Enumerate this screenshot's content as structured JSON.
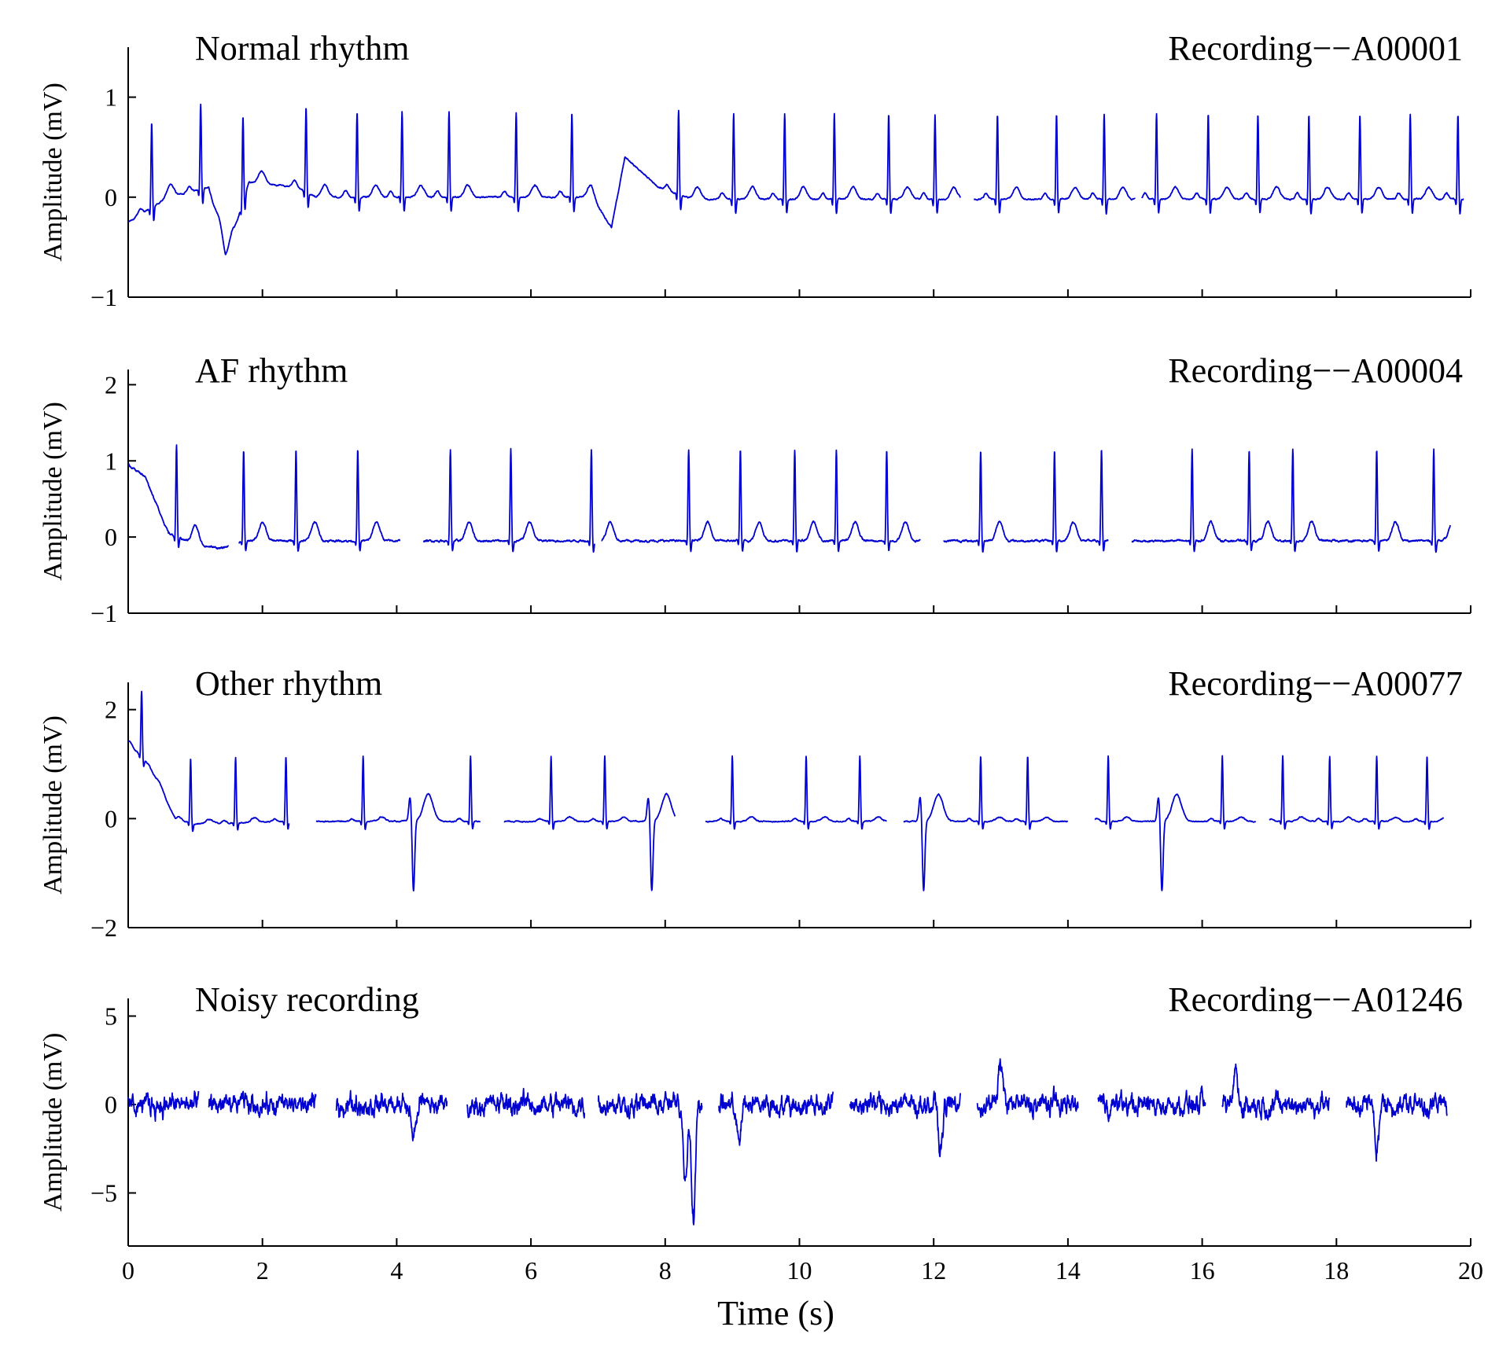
{
  "chart_data": [
    {
      "type": "line",
      "title": "Normal rhythm",
      "recording": "Recording−−A00001",
      "ylabel": "Amplitude (mV)",
      "ylim": [
        -1,
        1.5
      ],
      "yticks": [
        -1,
        0,
        1
      ],
      "xlim": [
        0,
        20
      ],
      "line_color": "#0000d0",
      "baseline": 0.0,
      "segments": [
        [
          0,
          12.4
        ],
        [
          12.6,
          15.0
        ],
        [
          15.1,
          19.9
        ]
      ],
      "beats": [
        0.35,
        1.08,
        1.71,
        2.65,
        3.41,
        4.08,
        4.78,
        5.78,
        6.61,
        8.2,
        9.02,
        9.78,
        10.52,
        11.33,
        12.02,
        12.95,
        13.83,
        14.54,
        15.32,
        16.09,
        16.83,
        17.59,
        18.35,
        19.1,
        19.81
      ],
      "r_amplitude": 0.85,
      "p_amplitude": 0.06,
      "t_amplitude": 0.12,
      "noise": 0.02,
      "drift": [
        [
          0,
          -0.25
        ],
        [
          0.6,
          0.0
        ],
        [
          1.2,
          0.1
        ],
        [
          1.45,
          -0.6
        ],
        [
          1.8,
          0.15
        ],
        [
          2.5,
          0.1
        ],
        [
          2.8,
          0.0
        ],
        [
          6.9,
          0.0
        ],
        [
          7.2,
          -0.3
        ],
        [
          7.4,
          0.4
        ],
        [
          7.9,
          0.1
        ],
        [
          8.4,
          -0.02
        ],
        [
          19.9,
          -0.02
        ]
      ]
    },
    {
      "type": "line",
      "title": "AF rhythm",
      "recording": "Recording−−A00004",
      "ylabel": "Amplitude (mV)",
      "ylim": [
        -1,
        2.2
      ],
      "yticks": [
        -1,
        0,
        1,
        2
      ],
      "xlim": [
        0,
        20
      ],
      "line_color": "#0000d0",
      "baseline": -0.05,
      "segments": [
        [
          0,
          1.5
        ],
        [
          1.65,
          4.05
        ],
        [
          4.4,
          6.95
        ],
        [
          7.05,
          11.8
        ],
        [
          12.15,
          14.6
        ],
        [
          14.95,
          19.7
        ]
      ],
      "beats": [
        0.72,
        1.72,
        2.5,
        3.42,
        4.8,
        5.7,
        6.9,
        8.35,
        9.12,
        9.93,
        10.55,
        11.3,
        12.7,
        13.8,
        14.5,
        15.85,
        16.7,
        17.35,
        18.6,
        19.45
      ],
      "r_amplitude": 1.2,
      "p_amplitude": 0.0,
      "t_amplitude": 0.25,
      "noise": 0.04,
      "drift": [
        [
          0,
          0.95
        ],
        [
          0.25,
          0.8
        ],
        [
          0.6,
          0.05
        ],
        [
          1.0,
          -0.1
        ],
        [
          1.4,
          -0.15
        ],
        [
          1.7,
          -0.05
        ],
        [
          19.7,
          -0.05
        ]
      ]
    },
    {
      "type": "line",
      "title": "Other rhythm",
      "recording": "Recording−−A00077",
      "ylabel": "Amplitude (mV)",
      "ylim": [
        -2,
        2.5
      ],
      "yticks": [
        -2,
        0,
        2
      ],
      "xlim": [
        0,
        20
      ],
      "line_color": "#0000d0",
      "baseline": -0.05,
      "segments": [
        [
          0,
          2.4
        ],
        [
          2.8,
          5.25
        ],
        [
          5.6,
          8.15
        ],
        [
          8.6,
          11.3
        ],
        [
          11.55,
          14.0
        ],
        [
          14.4,
          16.8
        ],
        [
          17.0,
          19.6
        ]
      ],
      "beats": [
        0.2,
        0.93,
        1.6,
        2.35,
        3.5,
        5.1,
        6.3,
        7.1,
        9.0,
        10.1,
        10.9,
        12.7,
        13.4,
        14.6,
        16.3,
        17.2,
        17.9,
        18.6,
        19.35
      ],
      "ectopic": [
        4.25,
        7.8,
        11.85,
        15.4
      ],
      "r_amplitude": 1.2,
      "ectopic_depth": -1.3,
      "p_amplitude": 0.05,
      "t_amplitude": 0.08,
      "noise": 0.03,
      "drift": [
        [
          0,
          1.4
        ],
        [
          0.3,
          1.0
        ],
        [
          0.7,
          0.0
        ],
        [
          1.0,
          -0.1
        ],
        [
          2.4,
          -0.05
        ],
        [
          19.6,
          -0.05
        ]
      ]
    },
    {
      "type": "line",
      "title": "Noisy recording",
      "recording": "Recording−−A01246",
      "ylabel": "Amplitude (mV)",
      "ylim": [
        -8,
        6
      ],
      "yticks": [
        -5,
        0,
        5
      ],
      "xlim": [
        0,
        20
      ],
      "line_color": "#0000d0",
      "baseline": 0.0,
      "segments": [
        [
          0,
          1.05
        ],
        [
          1.2,
          2.8
        ],
        [
          3.1,
          4.75
        ],
        [
          5.05,
          6.8
        ],
        [
          7.0,
          8.55
        ],
        [
          8.8,
          10.5
        ],
        [
          10.75,
          12.4
        ],
        [
          12.65,
          14.15
        ],
        [
          14.45,
          16.05
        ],
        [
          16.3,
          17.9
        ],
        [
          18.15,
          19.65
        ]
      ],
      "beats": [],
      "noise": 0.9,
      "spikes": [
        [
          8.3,
          -4.0
        ],
        [
          8.42,
          -6.2
        ],
        [
          4.25,
          -2.0
        ],
        [
          9.1,
          -2.3
        ],
        [
          12.1,
          -2.6
        ],
        [
          13.0,
          2.4
        ],
        [
          16.5,
          2.0
        ],
        [
          18.6,
          -2.5
        ]
      ],
      "drift": [
        [
          0,
          0
        ],
        [
          19.65,
          0
        ]
      ]
    }
  ],
  "x_axis": {
    "label": "Time (s)",
    "ticks": [
      0,
      2,
      4,
      6,
      8,
      10,
      12,
      14,
      16,
      18,
      20
    ]
  }
}
